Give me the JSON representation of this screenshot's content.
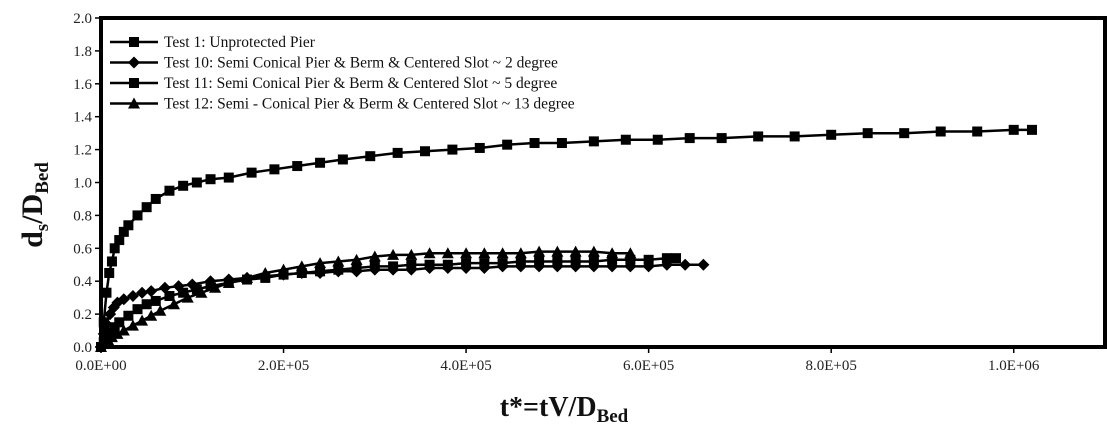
{
  "chart_data": {
    "type": "line",
    "xlabel": "t*=tV/D",
    "xlabel_sub": "Bed",
    "ylabel": "d",
    "ylabel_mid_sub": "s",
    "ylabel_post": "/D",
    "ylabel_sub": "Bed",
    "xlim": [
      0,
      1100000
    ],
    "ylim": [
      0,
      2.0
    ],
    "x_ticks": [
      0,
      200000,
      400000,
      600000,
      800000,
      1000000
    ],
    "x_tick_labels": [
      "0.0E+00",
      "2.0E+05",
      "4.0E+05",
      "6.0E+05",
      "8.0E+05",
      "1.0E+06"
    ],
    "y_ticks": [
      0,
      0.2,
      0.4,
      0.6,
      0.8,
      1.0,
      1.2,
      1.4,
      1.6,
      1.8,
      2.0
    ],
    "y_tick_labels": [
      "0.0",
      "0.2",
      "0.4",
      "0.6",
      "0.8",
      "1.0",
      "1.2",
      "1.4",
      "1.6",
      "1.8",
      "2.0"
    ],
    "grid": false,
    "legend_position": "top-left",
    "line_color": "#000000",
    "series": [
      {
        "name": "Test 1: Unprotected Pier",
        "marker": "square",
        "x": [
          0,
          3000,
          6000,
          9000,
          12000,
          15000,
          20000,
          25000,
          30000,
          40000,
          50000,
          60000,
          75000,
          90000,
          105000,
          120000,
          140000,
          165000,
          190000,
          215000,
          240000,
          265000,
          295000,
          325000,
          355000,
          385000,
          415000,
          445000,
          475000,
          505000,
          540000,
          575000,
          610000,
          645000,
          680000,
          720000,
          760000,
          800000,
          840000,
          880000,
          920000,
          960000,
          1000000,
          1020000
        ],
        "y": [
          0,
          0.15,
          0.33,
          0.45,
          0.52,
          0.6,
          0.65,
          0.7,
          0.74,
          0.8,
          0.85,
          0.9,
          0.95,
          0.98,
          1.0,
          1.02,
          1.03,
          1.06,
          1.08,
          1.1,
          1.12,
          1.14,
          1.16,
          1.18,
          1.19,
          1.2,
          1.21,
          1.23,
          1.24,
          1.24,
          1.25,
          1.26,
          1.26,
          1.27,
          1.27,
          1.28,
          1.28,
          1.29,
          1.3,
          1.3,
          1.31,
          1.31,
          1.32,
          1.32
        ]
      },
      {
        "name": "Test 10: Semi Conical Pier & Berm & Centered Slot ~ 2 degree",
        "marker": "diamond",
        "x": [
          0,
          3000,
          6000,
          10000,
          14000,
          18000,
          25000,
          35000,
          45000,
          55000,
          70000,
          85000,
          100000,
          120000,
          140000,
          160000,
          180000,
          200000,
          220000,
          240000,
          260000,
          280000,
          300000,
          320000,
          340000,
          360000,
          380000,
          400000,
          420000,
          440000,
          460000,
          480000,
          500000,
          520000,
          540000,
          560000,
          580000,
          600000,
          620000,
          640000,
          660000
        ],
        "y": [
          0,
          0.08,
          0.14,
          0.2,
          0.24,
          0.27,
          0.29,
          0.31,
          0.33,
          0.34,
          0.36,
          0.37,
          0.38,
          0.4,
          0.41,
          0.42,
          0.43,
          0.44,
          0.45,
          0.45,
          0.46,
          0.46,
          0.47,
          0.47,
          0.47,
          0.48,
          0.48,
          0.48,
          0.48,
          0.49,
          0.49,
          0.49,
          0.49,
          0.49,
          0.49,
          0.49,
          0.49,
          0.49,
          0.5,
          0.5,
          0.5
        ]
      },
      {
        "name": "Test 11: Semi Conical Pier & Berm & Centered Slot ~ 5 degree",
        "marker": "square",
        "x": [
          0,
          3000,
          6000,
          10000,
          15000,
          20000,
          30000,
          40000,
          50000,
          60000,
          75000,
          90000,
          105000,
          120000,
          140000,
          160000,
          180000,
          200000,
          220000,
          240000,
          260000,
          280000,
          300000,
          320000,
          340000,
          360000,
          380000,
          400000,
          420000,
          440000,
          460000,
          480000,
          500000,
          520000,
          540000,
          560000,
          580000,
          600000,
          620000,
          630000
        ],
        "y": [
          0,
          0.03,
          0.06,
          0.09,
          0.12,
          0.15,
          0.19,
          0.23,
          0.26,
          0.28,
          0.31,
          0.33,
          0.35,
          0.37,
          0.39,
          0.41,
          0.42,
          0.44,
          0.45,
          0.46,
          0.47,
          0.48,
          0.49,
          0.49,
          0.5,
          0.5,
          0.5,
          0.51,
          0.51,
          0.51,
          0.52,
          0.52,
          0.52,
          0.52,
          0.52,
          0.53,
          0.53,
          0.53,
          0.54,
          0.54
        ]
      },
      {
        "name": "Test 12: Semi - Conical Pier & Berm & Centered Slot ~ 13 degree",
        "marker": "triangle",
        "x": [
          0,
          4000,
          8000,
          12000,
          18000,
          25000,
          35000,
          45000,
          55000,
          65000,
          80000,
          95000,
          110000,
          125000,
          140000,
          160000,
          180000,
          200000,
          220000,
          240000,
          260000,
          280000,
          300000,
          320000,
          340000,
          360000,
          380000,
          400000,
          420000,
          440000,
          460000,
          480000,
          500000,
          520000,
          540000,
          560000,
          580000
        ],
        "y": [
          0,
          0.02,
          0.04,
          0.06,
          0.08,
          0.1,
          0.13,
          0.16,
          0.19,
          0.22,
          0.26,
          0.3,
          0.33,
          0.36,
          0.39,
          0.42,
          0.45,
          0.47,
          0.49,
          0.51,
          0.52,
          0.53,
          0.55,
          0.56,
          0.56,
          0.57,
          0.57,
          0.57,
          0.57,
          0.57,
          0.57,
          0.58,
          0.58,
          0.58,
          0.58,
          0.57,
          0.57
        ]
      }
    ]
  }
}
